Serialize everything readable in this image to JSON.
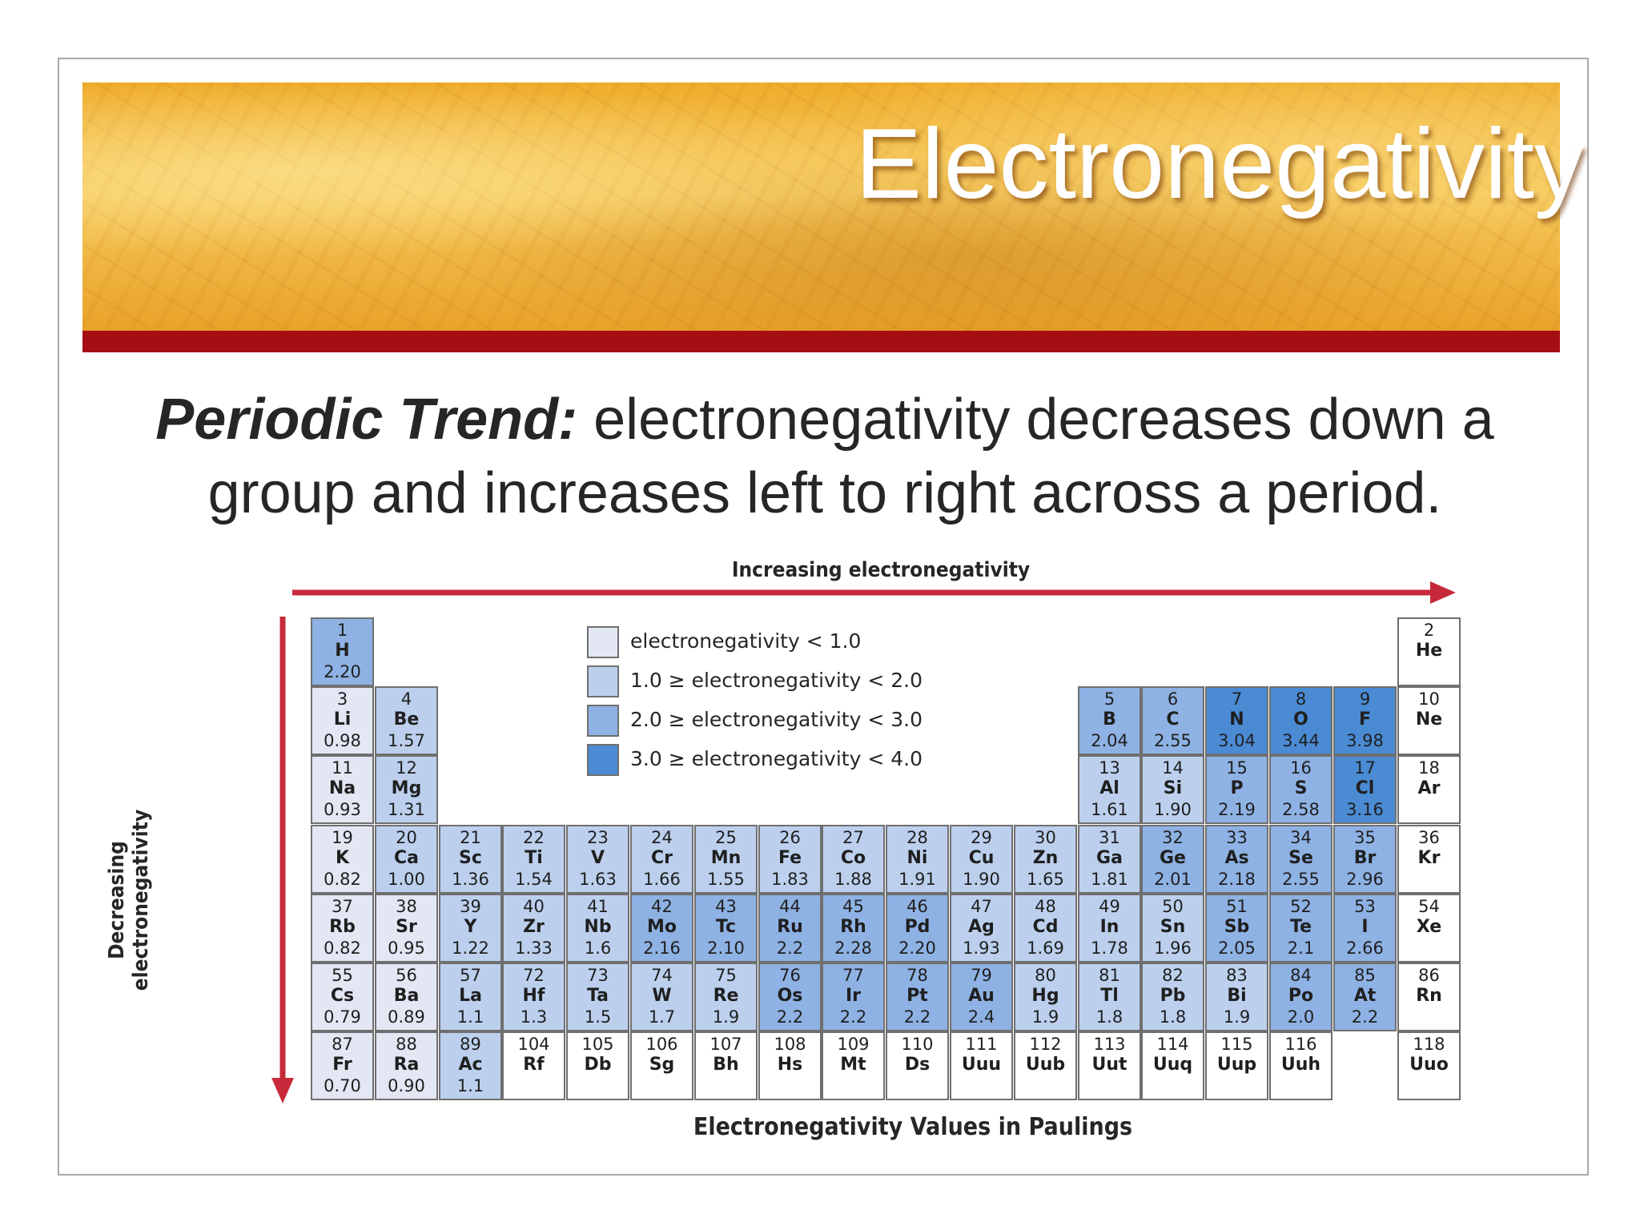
{
  "slide": {
    "title": "Electronegativity",
    "subtitle_lead": "Periodic Trend:",
    "subtitle_rest": " electronegativity decreases down a group and increases left to right across a period."
  },
  "figure": {
    "top_label": "Increasing electronegativity",
    "left_label": "Decreasing electronegativity",
    "bottom_label": "Electronegativity Values in Paulings",
    "arrow_color": "#c62a3a"
  },
  "legend": [
    {
      "text": "electronegativity < 1.0",
      "color": "#e3e7f4"
    },
    {
      "text": "1.0 ≥ electronegativity < 2.0",
      "color": "#bcd0ee"
    },
    {
      "text": "2.0 ≥ electronegativity < 3.0",
      "color": "#8eb2e4"
    },
    {
      "text": "3.0 ≥ electronegativity < 4.0",
      "color": "#4a8bd4"
    }
  ],
  "colors": {
    "c0": "#e3e7f4",
    "c1": "#bcd0ee",
    "c2": "#8eb2e4",
    "c3": "#4a8bd4",
    "none": "#ffffff"
  },
  "elements": [
    {
      "period": 1,
      "group": 1,
      "num": "1",
      "sym": "H",
      "en": "2.20",
      "cat": 2
    },
    {
      "period": 1,
      "group": 18,
      "num": "2",
      "sym": "He",
      "en": "",
      "cat": -1
    },
    {
      "period": 2,
      "group": 1,
      "num": "3",
      "sym": "Li",
      "en": "0.98",
      "cat": 0
    },
    {
      "period": 2,
      "group": 2,
      "num": "4",
      "sym": "Be",
      "en": "1.57",
      "cat": 1
    },
    {
      "period": 2,
      "group": 13,
      "num": "5",
      "sym": "B",
      "en": "2.04",
      "cat": 2
    },
    {
      "period": 2,
      "group": 14,
      "num": "6",
      "sym": "C",
      "en": "2.55",
      "cat": 2
    },
    {
      "period": 2,
      "group": 15,
      "num": "7",
      "sym": "N",
      "en": "3.04",
      "cat": 3
    },
    {
      "period": 2,
      "group": 16,
      "num": "8",
      "sym": "O",
      "en": "3.44",
      "cat": 3
    },
    {
      "period": 2,
      "group": 17,
      "num": "9",
      "sym": "F",
      "en": "3.98",
      "cat": 3
    },
    {
      "period": 2,
      "group": 18,
      "num": "10",
      "sym": "Ne",
      "en": "",
      "cat": -1
    },
    {
      "period": 3,
      "group": 1,
      "num": "11",
      "sym": "Na",
      "en": "0.93",
      "cat": 0
    },
    {
      "period": 3,
      "group": 2,
      "num": "12",
      "sym": "Mg",
      "en": "1.31",
      "cat": 1
    },
    {
      "period": 3,
      "group": 13,
      "num": "13",
      "sym": "Al",
      "en": "1.61",
      "cat": 1
    },
    {
      "period": 3,
      "group": 14,
      "num": "14",
      "sym": "Si",
      "en": "1.90",
      "cat": 1
    },
    {
      "period": 3,
      "group": 15,
      "num": "15",
      "sym": "P",
      "en": "2.19",
      "cat": 2
    },
    {
      "period": 3,
      "group": 16,
      "num": "16",
      "sym": "S",
      "en": "2.58",
      "cat": 2
    },
    {
      "period": 3,
      "group": 17,
      "num": "17",
      "sym": "Cl",
      "en": "3.16",
      "cat": 3
    },
    {
      "period": 3,
      "group": 18,
      "num": "18",
      "sym": "Ar",
      "en": "",
      "cat": -1
    },
    {
      "period": 4,
      "group": 1,
      "num": "19",
      "sym": "K",
      "en": "0.82",
      "cat": 0
    },
    {
      "period": 4,
      "group": 2,
      "num": "20",
      "sym": "Ca",
      "en": "1.00",
      "cat": 1
    },
    {
      "period": 4,
      "group": 3,
      "num": "21",
      "sym": "Sc",
      "en": "1.36",
      "cat": 1
    },
    {
      "period": 4,
      "group": 4,
      "num": "22",
      "sym": "Ti",
      "en": "1.54",
      "cat": 1
    },
    {
      "period": 4,
      "group": 5,
      "num": "23",
      "sym": "V",
      "en": "1.63",
      "cat": 1
    },
    {
      "period": 4,
      "group": 6,
      "num": "24",
      "sym": "Cr",
      "en": "1.66",
      "cat": 1
    },
    {
      "period": 4,
      "group": 7,
      "num": "25",
      "sym": "Mn",
      "en": "1.55",
      "cat": 1
    },
    {
      "period": 4,
      "group": 8,
      "num": "26",
      "sym": "Fe",
      "en": "1.83",
      "cat": 1
    },
    {
      "period": 4,
      "group": 9,
      "num": "27",
      "sym": "Co",
      "en": "1.88",
      "cat": 1
    },
    {
      "period": 4,
      "group": 10,
      "num": "28",
      "sym": "Ni",
      "en": "1.91",
      "cat": 1
    },
    {
      "period": 4,
      "group": 11,
      "num": "29",
      "sym": "Cu",
      "en": "1.90",
      "cat": 1
    },
    {
      "period": 4,
      "group": 12,
      "num": "30",
      "sym": "Zn",
      "en": "1.65",
      "cat": 1
    },
    {
      "period": 4,
      "group": 13,
      "num": "31",
      "sym": "Ga",
      "en": "1.81",
      "cat": 1
    },
    {
      "period": 4,
      "group": 14,
      "num": "32",
      "sym": "Ge",
      "en": "2.01",
      "cat": 2
    },
    {
      "period": 4,
      "group": 15,
      "num": "33",
      "sym": "As",
      "en": "2.18",
      "cat": 2
    },
    {
      "period": 4,
      "group": 16,
      "num": "34",
      "sym": "Se",
      "en": "2.55",
      "cat": 2
    },
    {
      "period": 4,
      "group": 17,
      "num": "35",
      "sym": "Br",
      "en": "2.96",
      "cat": 2
    },
    {
      "period": 4,
      "group": 18,
      "num": "36",
      "sym": "Kr",
      "en": "",
      "cat": -1
    },
    {
      "period": 5,
      "group": 1,
      "num": "37",
      "sym": "Rb",
      "en": "0.82",
      "cat": 0
    },
    {
      "period": 5,
      "group": 2,
      "num": "38",
      "sym": "Sr",
      "en": "0.95",
      "cat": 0
    },
    {
      "period": 5,
      "group": 3,
      "num": "39",
      "sym": "Y",
      "en": "1.22",
      "cat": 1
    },
    {
      "period": 5,
      "group": 4,
      "num": "40",
      "sym": "Zr",
      "en": "1.33",
      "cat": 1
    },
    {
      "period": 5,
      "group": 5,
      "num": "41",
      "sym": "Nb",
      "en": "1.6",
      "cat": 1
    },
    {
      "period": 5,
      "group": 6,
      "num": "42",
      "sym": "Mo",
      "en": "2.16",
      "cat": 2
    },
    {
      "period": 5,
      "group": 7,
      "num": "43",
      "sym": "Tc",
      "en": "2.10",
      "cat": 2
    },
    {
      "period": 5,
      "group": 8,
      "num": "44",
      "sym": "Ru",
      "en": "2.2",
      "cat": 2
    },
    {
      "period": 5,
      "group": 9,
      "num": "45",
      "sym": "Rh",
      "en": "2.28",
      "cat": 2
    },
    {
      "period": 5,
      "group": 10,
      "num": "46",
      "sym": "Pd",
      "en": "2.20",
      "cat": 2
    },
    {
      "period": 5,
      "group": 11,
      "num": "47",
      "sym": "Ag",
      "en": "1.93",
      "cat": 1
    },
    {
      "period": 5,
      "group": 12,
      "num": "48",
      "sym": "Cd",
      "en": "1.69",
      "cat": 1
    },
    {
      "period": 5,
      "group": 13,
      "num": "49",
      "sym": "In",
      "en": "1.78",
      "cat": 1
    },
    {
      "period": 5,
      "group": 14,
      "num": "50",
      "sym": "Sn",
      "en": "1.96",
      "cat": 1
    },
    {
      "period": 5,
      "group": 15,
      "num": "51",
      "sym": "Sb",
      "en": "2.05",
      "cat": 2
    },
    {
      "period": 5,
      "group": 16,
      "num": "52",
      "sym": "Te",
      "en": "2.1",
      "cat": 2
    },
    {
      "period": 5,
      "group": 17,
      "num": "53",
      "sym": "I",
      "en": "2.66",
      "cat": 2
    },
    {
      "period": 5,
      "group": 18,
      "num": "54",
      "sym": "Xe",
      "en": "",
      "cat": -1
    },
    {
      "period": 6,
      "group": 1,
      "num": "55",
      "sym": "Cs",
      "en": "0.79",
      "cat": 0
    },
    {
      "period": 6,
      "group": 2,
      "num": "56",
      "sym": "Ba",
      "en": "0.89",
      "cat": 0
    },
    {
      "period": 6,
      "group": 3,
      "num": "57",
      "sym": "La",
      "en": "1.1",
      "cat": 1
    },
    {
      "period": 6,
      "group": 4,
      "num": "72",
      "sym": "Hf",
      "en": "1.3",
      "cat": 1
    },
    {
      "period": 6,
      "group": 5,
      "num": "73",
      "sym": "Ta",
      "en": "1.5",
      "cat": 1
    },
    {
      "period": 6,
      "group": 6,
      "num": "74",
      "sym": "W",
      "en": "1.7",
      "cat": 1
    },
    {
      "period": 6,
      "group": 7,
      "num": "75",
      "sym": "Re",
      "en": "1.9",
      "cat": 1
    },
    {
      "period": 6,
      "group": 8,
      "num": "76",
      "sym": "Os",
      "en": "2.2",
      "cat": 2
    },
    {
      "period": 6,
      "group": 9,
      "num": "77",
      "sym": "Ir",
      "en": "2.2",
      "cat": 2
    },
    {
      "period": 6,
      "group": 10,
      "num": "78",
      "sym": "Pt",
      "en": "2.2",
      "cat": 2
    },
    {
      "period": 6,
      "group": 11,
      "num": "79",
      "sym": "Au",
      "en": "2.4",
      "cat": 2
    },
    {
      "period": 6,
      "group": 12,
      "num": "80",
      "sym": "Hg",
      "en": "1.9",
      "cat": 1
    },
    {
      "period": 6,
      "group": 13,
      "num": "81",
      "sym": "Tl",
      "en": "1.8",
      "cat": 1
    },
    {
      "period": 6,
      "group": 14,
      "num": "82",
      "sym": "Pb",
      "en": "1.8",
      "cat": 1
    },
    {
      "period": 6,
      "group": 15,
      "num": "83",
      "sym": "Bi",
      "en": "1.9",
      "cat": 1
    },
    {
      "period": 6,
      "group": 16,
      "num": "84",
      "sym": "Po",
      "en": "2.0",
      "cat": 2
    },
    {
      "period": 6,
      "group": 17,
      "num": "85",
      "sym": "At",
      "en": "2.2",
      "cat": 2
    },
    {
      "period": 6,
      "group": 18,
      "num": "86",
      "sym": "Rn",
      "en": "",
      "cat": -1
    },
    {
      "period": 7,
      "group": 1,
      "num": "87",
      "sym": "Fr",
      "en": "0.70",
      "cat": 0
    },
    {
      "period": 7,
      "group": 2,
      "num": "88",
      "sym": "Ra",
      "en": "0.90",
      "cat": 0
    },
    {
      "period": 7,
      "group": 3,
      "num": "89",
      "sym": "Ac",
      "en": "1.1",
      "cat": 1
    },
    {
      "period": 7,
      "group": 4,
      "num": "104",
      "sym": "Rf",
      "en": "",
      "cat": -1
    },
    {
      "period": 7,
      "group": 5,
      "num": "105",
      "sym": "Db",
      "en": "",
      "cat": -1
    },
    {
      "period": 7,
      "group": 6,
      "num": "106",
      "sym": "Sg",
      "en": "",
      "cat": -1
    },
    {
      "period": 7,
      "group": 7,
      "num": "107",
      "sym": "Bh",
      "en": "",
      "cat": -1
    },
    {
      "period": 7,
      "group": 8,
      "num": "108",
      "sym": "Hs",
      "en": "",
      "cat": -1
    },
    {
      "period": 7,
      "group": 9,
      "num": "109",
      "sym": "Mt",
      "en": "",
      "cat": -1
    },
    {
      "period": 7,
      "group": 10,
      "num": "110",
      "sym": "Ds",
      "en": "",
      "cat": -1
    },
    {
      "period": 7,
      "group": 11,
      "num": "111",
      "sym": "Uuu",
      "en": "",
      "cat": -1
    },
    {
      "period": 7,
      "group": 12,
      "num": "112",
      "sym": "Uub",
      "en": "",
      "cat": -1
    },
    {
      "period": 7,
      "group": 13,
      "num": "113",
      "sym": "Uut",
      "en": "",
      "cat": -1
    },
    {
      "period": 7,
      "group": 14,
      "num": "114",
      "sym": "Uuq",
      "en": "",
      "cat": -1
    },
    {
      "period": 7,
      "group": 15,
      "num": "115",
      "sym": "Uup",
      "en": "",
      "cat": -1
    },
    {
      "period": 7,
      "group": 16,
      "num": "116",
      "sym": "Uuh",
      "en": "",
      "cat": -1
    },
    {
      "period": 7,
      "group": 18,
      "num": "118",
      "sym": "Uuo",
      "en": "",
      "cat": -1
    }
  ]
}
